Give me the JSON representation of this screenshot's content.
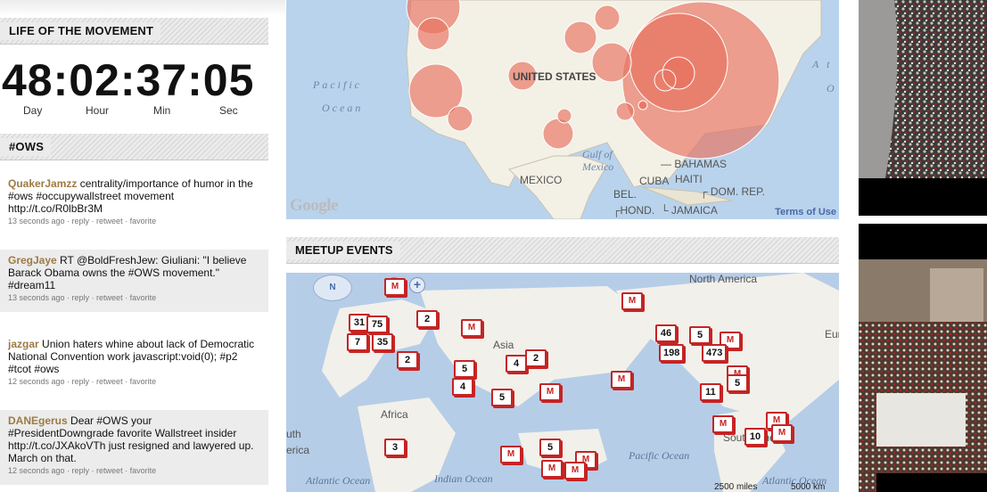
{
  "life": {
    "header": "LIFE OF THE MOVEMENT",
    "clock": "48:02:37:05",
    "labels": [
      "Day",
      "Hour",
      "Min",
      "Sec"
    ]
  },
  "ows": {
    "header": "#OWS",
    "tweets": [
      {
        "user": "QuakerJamzz",
        "text": "centrality/importance of humor in the #ows #occupywallstreet movement http://t.co/R0lbBr3M",
        "meta": "13 seconds ago · reply · retweet · favorite"
      },
      {
        "user": "GregJaye",
        "text": "RT @BoldFreshJew: Giuliani: \"I believe Barack Obama owns the #OWS movement.\" #dream11",
        "meta": "13 seconds ago · reply · retweet · favorite"
      },
      {
        "user": "jazgar",
        "text": "Union haters whine about lack of Democratic National Convention work javascript:void(0); #p2 #tcot #ows",
        "meta": "12 seconds ago · reply · retweet · favorite"
      },
      {
        "user": "DANEgerus",
        "text": "Dear #OWS your #PresidentDowngrade favorite Wallstreet insider http://t.co/JXAkoVTh just resigned and lawyered up. March on that.",
        "meta": "12 seconds ago · reply · retweet · favorite"
      }
    ]
  },
  "map_top": {
    "labels": {
      "us": "UNITED STATES",
      "mexico": "MEXICO",
      "bahamas": "BAHAMAS",
      "cuba": "CUBA",
      "haiti": "HAITI",
      "dom_rep": "DOM. REP.",
      "belize": "BEL.",
      "honduras": "HOND.",
      "jamaica": "JAMAICA",
      "pacific": "Pacific",
      "ocean": "Ocean",
      "gulf1": "Gulf of",
      "gulf2": "Mexico",
      "atl_a": "A t",
      "atl_o": "O"
    },
    "google": "Google",
    "terms": "Terms of Use",
    "accent": "#e8705e"
  },
  "meetup": {
    "header": "MEETUP EVENTS",
    "nav": {
      "n": "N"
    },
    "labels": {
      "north_america": "North America",
      "asia": "Asia",
      "africa": "Africa",
      "south_america": "South America",
      "europe_partial": "Eur",
      "south_partial": "uth",
      "erica_partial": "erica",
      "atlantic_left": "Atlantic Ocean",
      "indian": "Indian Ocean",
      "pacific": "Pacific Ocean",
      "atlantic_right": "Atlantic Ocean",
      "scale_miles": "2500 miles",
      "scale_km": "5000 km"
    },
    "markers": [
      "31",
      "75",
      "7",
      "35",
      "2",
      "M",
      "2",
      "M",
      "M",
      "46",
      "5",
      "M",
      "198",
      "473",
      "M",
      "4",
      "2",
      "5",
      "4",
      "5",
      "M",
      "M",
      "11",
      "5",
      "M",
      "M",
      "10",
      "3",
      "M",
      "5",
      "M",
      "M",
      "M",
      "M"
    ],
    "marker_color": "#c52424"
  }
}
